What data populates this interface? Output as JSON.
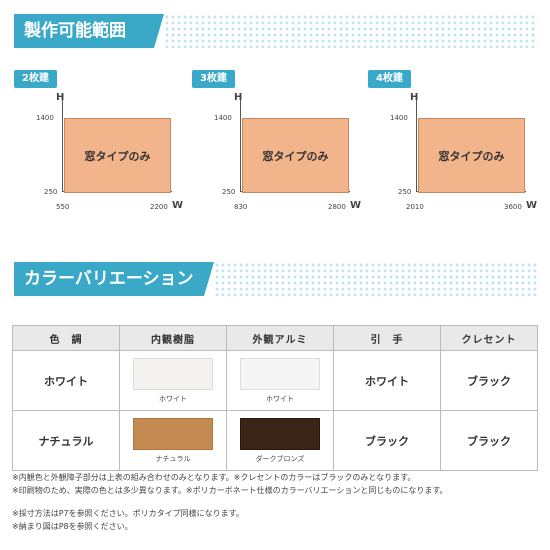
{
  "section_size": {
    "title": "製作可能範囲"
  },
  "section_color": {
    "title": "カラーバリエーション"
  },
  "panels": [
    {
      "badge": "2枚建",
      "h_label": "H",
      "h_top": "1400",
      "h_bottom": "250",
      "w_left": "550",
      "w_right": "2200",
      "w_label": "W",
      "box_text": "窓タイプのみ"
    },
    {
      "badge": "3枚建",
      "h_label": "H",
      "h_top": "1400",
      "h_bottom": "250",
      "w_left": "830",
      "w_right": "2800",
      "w_label": "W",
      "box_text": "窓タイプのみ"
    },
    {
      "badge": "4枚建",
      "h_label": "H",
      "h_top": "1400",
      "h_bottom": "250",
      "w_left": "2010",
      "w_right": "3600",
      "w_label": "W",
      "box_text": "窓タイプのみ"
    }
  ],
  "table": {
    "headers": [
      "色　調",
      "内観樹脂",
      "外観アルミ",
      "引　手",
      "クレセント"
    ],
    "rows": [
      {
        "tone": "ホワイト",
        "inner_label": "ホワイト",
        "inner_color": "#f3f2ef",
        "outer_label": "ホワイト",
        "outer_color": "#f5f5f5",
        "handle": "ホワイト",
        "crescent": "ブラック"
      },
      {
        "tone": "ナチュラル",
        "inner_label": "ナチュラル",
        "inner_color": "#c58a52",
        "outer_label": "ダークブロンズ",
        "outer_color": "#3a2417",
        "handle": "ブラック",
        "crescent": "ブラック"
      }
    ]
  },
  "notes": [
    "※内観色と外観障子部分は上表の組み合わせのみとなります。※クレセントのカラーはブラックのみとなります。",
    "※印刷物のため、実際の色とは多少異なります。※ポリカーボネート仕様のカラーバリエーションと同じものになります。",
    "※採寸方法はP7を参照ください。ポリカタイプ同様になります。",
    "※納まり図はP8を参照ください。"
  ]
}
